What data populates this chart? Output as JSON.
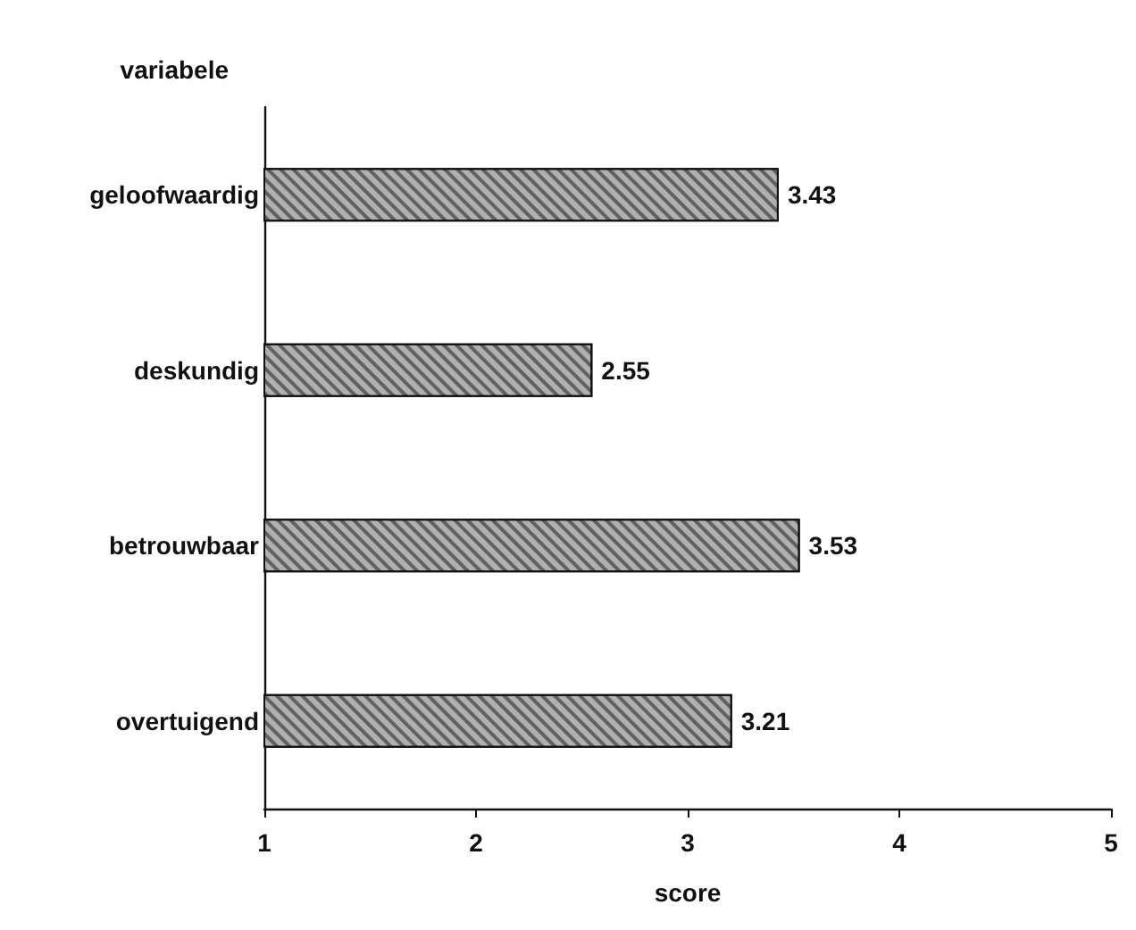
{
  "chart_data": {
    "type": "bar",
    "orientation": "horizontal",
    "xlabel": "score",
    "ylabel": "variabele",
    "categories": [
      "geloofwaardig",
      "deskundig",
      "betrouwbaar",
      "overtuigend"
    ],
    "values": [
      3.43,
      2.55,
      3.53,
      3.21
    ],
    "color": "#b0b0b0",
    "xlim": [
      1,
      5
    ],
    "xticks": [
      1,
      2,
      3,
      4,
      5
    ],
    "grid": false,
    "data_labels": true
  }
}
